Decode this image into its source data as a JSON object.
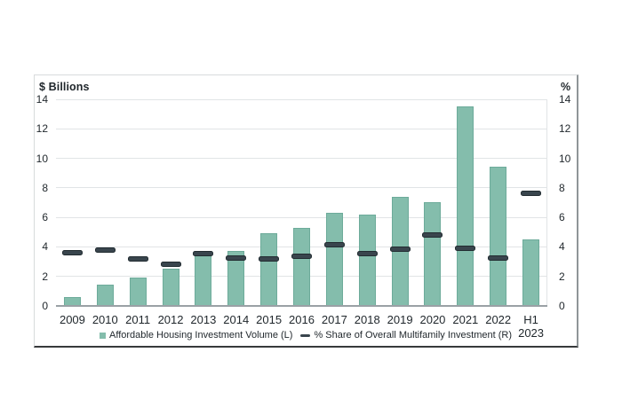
{
  "chart_data": {
    "type": "bar",
    "title": "",
    "categories": [
      "2009",
      "2010",
      "2011",
      "2012",
      "2013",
      "2014",
      "2015",
      "2016",
      "2017",
      "2018",
      "2019",
      "2020",
      "2021",
      "2022",
      "H1\n2023"
    ],
    "series": [
      {
        "name": "Affordable Housing Investment Volume (L)",
        "type": "bar",
        "axis": "left",
        "color": "#84bdac",
        "values": [
          0.6,
          1.45,
          1.9,
          2.55,
          3.4,
          3.7,
          4.9,
          5.3,
          6.3,
          6.2,
          7.4,
          7.05,
          13.5,
          9.45,
          4.5
        ]
      },
      {
        "name": "% Share of Overall Multifamily Investment (R)",
        "type": "dash-marker",
        "axis": "right",
        "color": "#39454d",
        "values": [
          3.6,
          3.8,
          3.2,
          2.85,
          3.55,
          3.25,
          3.2,
          3.35,
          4.15,
          3.55,
          3.85,
          4.8,
          3.9,
          3.25,
          7.65
        ]
      }
    ],
    "left_axis": {
      "title": "$ Billions",
      "min": 0,
      "max": 14,
      "ticks": [
        0,
        2,
        4,
        6,
        8,
        10,
        12,
        14
      ]
    },
    "right_axis": {
      "title": "%",
      "min": 0,
      "max": 14,
      "ticks": [
        0,
        2,
        4,
        6,
        8,
        10,
        12,
        14
      ]
    },
    "grid": true,
    "legend_position": "bottom"
  },
  "colors": {
    "bar_fill": "#84bdac",
    "bar_edge": "#6dab9a",
    "dash_fill": "#39454d",
    "dash_edge": "#222c31",
    "gridline": "#e1e4e6",
    "baseline": "#9aa1a5",
    "text": "#1f262b",
    "card_border_light": "#d8dbdc",
    "card_border_right": "#8f9598",
    "card_border_bottom": "#37393b"
  }
}
